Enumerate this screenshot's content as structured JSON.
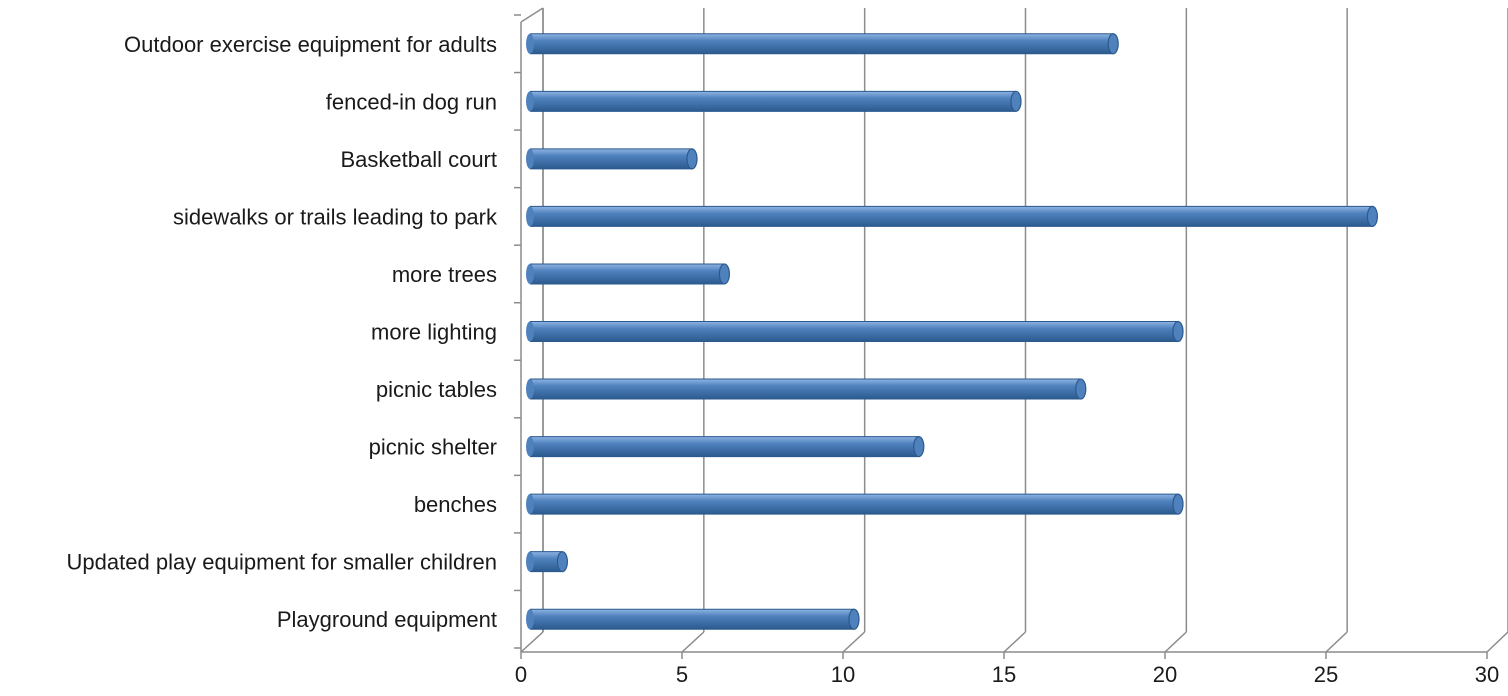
{
  "chart_data": {
    "type": "bar",
    "orientation": "horizontal",
    "style": "3d-cylinder",
    "title": "",
    "xlabel": "",
    "ylabel": "",
    "categories": [
      "Outdoor exercise equipment for adults",
      "fenced-in dog run",
      "Basketball court",
      "sidewalks or trails leading to park",
      "more trees",
      "more lighting",
      "picnic tables",
      "picnic shelter",
      "benches",
      "Updated play equipment for smaller children",
      "Playground equipment"
    ],
    "values": [
      18,
      15,
      5,
      26,
      6,
      20,
      17,
      12,
      20,
      1,
      10
    ],
    "xlim": [
      0,
      30
    ],
    "xticks": [
      0,
      5,
      10,
      15,
      20,
      25,
      30
    ],
    "grid": true,
    "legend": "none",
    "bar_color": "#4f81bd",
    "bar_color_dark": "#2b5a8e",
    "bar_color_light": "#8fb4e3",
    "grid_color": "#8c8c8c"
  }
}
